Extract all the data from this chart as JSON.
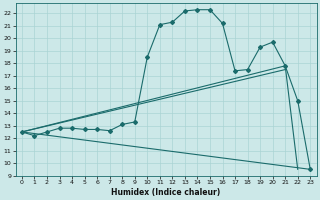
{
  "xlabel": "Humidex (Indice chaleur)",
  "bg_color": "#cce8e8",
  "line_color": "#1a6b6b",
  "grid_color": "#aad4d4",
  "xlim": [
    -0.5,
    23.5
  ],
  "ylim": [
    9,
    22.8
  ],
  "yticks": [
    9,
    10,
    11,
    12,
    13,
    14,
    15,
    16,
    17,
    18,
    19,
    20,
    21,
    22
  ],
  "xticks": [
    0,
    1,
    2,
    3,
    4,
    5,
    6,
    7,
    8,
    9,
    10,
    11,
    12,
    13,
    14,
    15,
    16,
    17,
    18,
    19,
    20,
    21,
    22,
    23
  ],
  "line_main": {
    "x": [
      0,
      1,
      2,
      3,
      4,
      5,
      6,
      7,
      8,
      9,
      10,
      11,
      12,
      13,
      14,
      15,
      16,
      17,
      18,
      19,
      20,
      21,
      22,
      23
    ],
    "y": [
      12.5,
      12.2,
      12.5,
      12.8,
      12.8,
      12.7,
      12.7,
      12.6,
      13.1,
      13.3,
      18.5,
      21.1,
      21.3,
      22.2,
      22.3,
      22.3,
      21.2,
      17.4,
      17.5,
      19.3,
      19.7,
      17.8,
      15.0,
      9.5
    ]
  },
  "line_upper": {
    "x": [
      0,
      21,
      22
    ],
    "y": [
      12.5,
      17.8,
      9.5
    ]
  },
  "line_mid": {
    "x": [
      0,
      21
    ],
    "y": [
      12.5,
      17.5
    ]
  },
  "line_lower": {
    "x": [
      0,
      23
    ],
    "y": [
      12.5,
      9.5
    ]
  }
}
